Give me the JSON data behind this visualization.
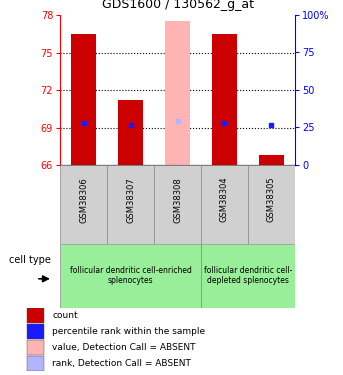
{
  "title": "GDS1600 / 130562_g_at",
  "samples": [
    "GSM38306",
    "GSM38307",
    "GSM38308",
    "GSM38304",
    "GSM38305"
  ],
  "ylim_left": [
    66,
    78
  ],
  "ylim_right": [
    0,
    100
  ],
  "yticks_left": [
    66,
    69,
    72,
    75,
    78
  ],
  "yticks_right": [
    0,
    25,
    50,
    75,
    100
  ],
  "ytick_labels_right": [
    "0",
    "25",
    "50",
    "75",
    "100%"
  ],
  "bar_tops": [
    76.5,
    71.2,
    77.5,
    76.5,
    66.8
  ],
  "bar_bottoms": [
    66,
    66,
    66,
    66,
    66
  ],
  "bar_colors": [
    "#cc0000",
    "#cc0000",
    "#ffb3b3",
    "#cc0000",
    "#cc0000"
  ],
  "dot_values": [
    69.4,
    69.2,
    69.5,
    69.4,
    69.2
  ],
  "dot_colors": [
    "#1a1aff",
    "#1a1aff",
    "#b3b3ff",
    "#1a1aff",
    "#1a1aff"
  ],
  "grid_yticks": [
    69,
    72,
    75
  ],
  "group1_label": "follicular dendritic cell-enriched\nsplenocytes",
  "group2_label": "follicular dendritic cell-\ndepleted splenocytes",
  "group1_color": "#99ee99",
  "group2_color": "#99ee99",
  "legend_items": [
    {
      "color": "#cc0000",
      "label": "count"
    },
    {
      "color": "#1a1aff",
      "label": "percentile rank within the sample"
    },
    {
      "color": "#ffb3b3",
      "label": "value, Detection Call = ABSENT"
    },
    {
      "color": "#b3b3ff",
      "label": "rank, Detection Call = ABSENT"
    }
  ],
  "cell_type_label": "cell type",
  "bar_width": 0.55,
  "bg_color": "#d0d0d0",
  "fig_width": 3.43,
  "fig_height": 3.75
}
